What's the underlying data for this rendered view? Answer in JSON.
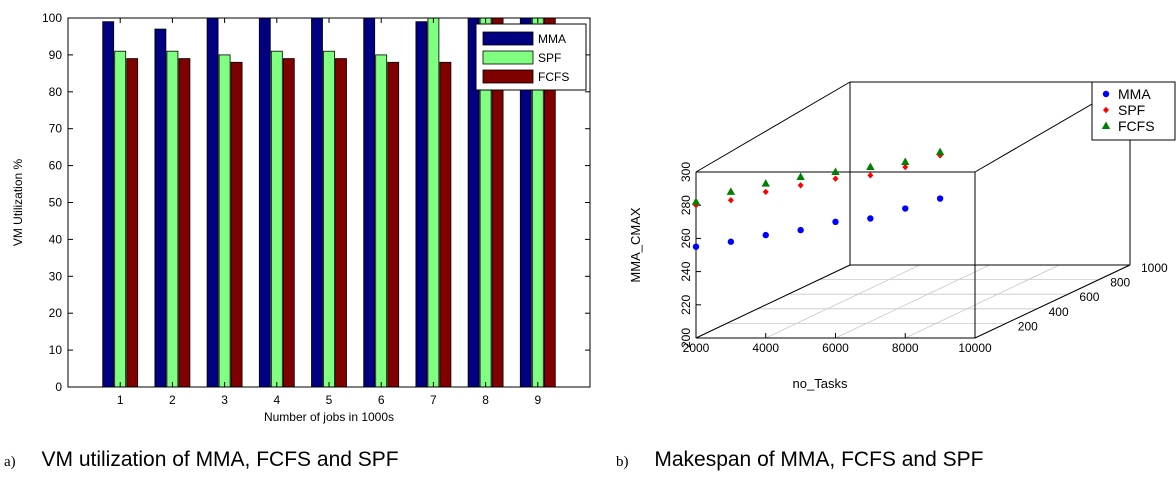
{
  "chart_data": [
    {
      "type": "bar",
      "categories": [
        "1",
        "2",
        "3",
        "4",
        "5",
        "6",
        "7",
        "8",
        "9"
      ],
      "series": [
        {
          "name": "MMA",
          "values": [
            99,
            97,
            100,
            100,
            100,
            100,
            99,
            100,
            100
          ],
          "color": "#000080"
        },
        {
          "name": "SPF",
          "values": [
            91,
            91,
            90,
            91,
            91,
            90,
            100,
            100,
            100
          ],
          "color": "#80ff80"
        },
        {
          "name": "FCFS",
          "values": [
            89,
            89,
            88,
            89,
            89,
            88,
            88,
            100,
            100
          ],
          "color": "#800000"
        }
      ],
      "xlabel": "Number of jobs in 1000s",
      "ylabel": "VM Utilization %",
      "ylim": [
        0,
        100
      ],
      "yticks": [
        "0",
        "10",
        "20",
        "30",
        "40",
        "50",
        "60",
        "70",
        "80",
        "90",
        "100"
      ],
      "legend": "top-right",
      "grid": false
    },
    {
      "type": "scatter",
      "dimensions": 3,
      "x": [
        2000,
        3000,
        4000,
        5000,
        6000,
        7000,
        8000,
        9000
      ],
      "series": [
        {
          "name": "MMA",
          "marker": "circle",
          "color": "#0000ff",
          "values": [
            255,
            258,
            262,
            265,
            270,
            272,
            278,
            284
          ]
        },
        {
          "name": "SPF",
          "marker": "diamond",
          "color": "#ff0000",
          "values": [
            280,
            283,
            288,
            292,
            296,
            298,
            303,
            310
          ]
        },
        {
          "name": "FCFS",
          "marker": "triangle",
          "color": "#008000",
          "values": [
            282,
            288,
            293,
            297,
            300,
            303,
            306,
            312
          ]
        }
      ],
      "xlabel": "no_Tasks",
      "zlabel": "MMA_CMAX",
      "xticks": [
        "2000",
        "4000",
        "6000",
        "8000",
        "10000"
      ],
      "yticks": [
        "200",
        "400",
        "600",
        "800",
        "1000"
      ],
      "zticks": [
        "200",
        "220",
        "240",
        "260",
        "280",
        "300"
      ],
      "xlim": [
        2000,
        10000
      ],
      "ylim": [
        0,
        1000
      ],
      "zlim": [
        200,
        300
      ],
      "legend": "top-right",
      "grid": true
    }
  ],
  "captions": [
    {
      "letter": "a)",
      "text": "VM utilization of MMA, FCFS and SPF"
    },
    {
      "letter": "b)",
      "text": "Makespan  of MMA, FCFS and SPF"
    }
  ]
}
